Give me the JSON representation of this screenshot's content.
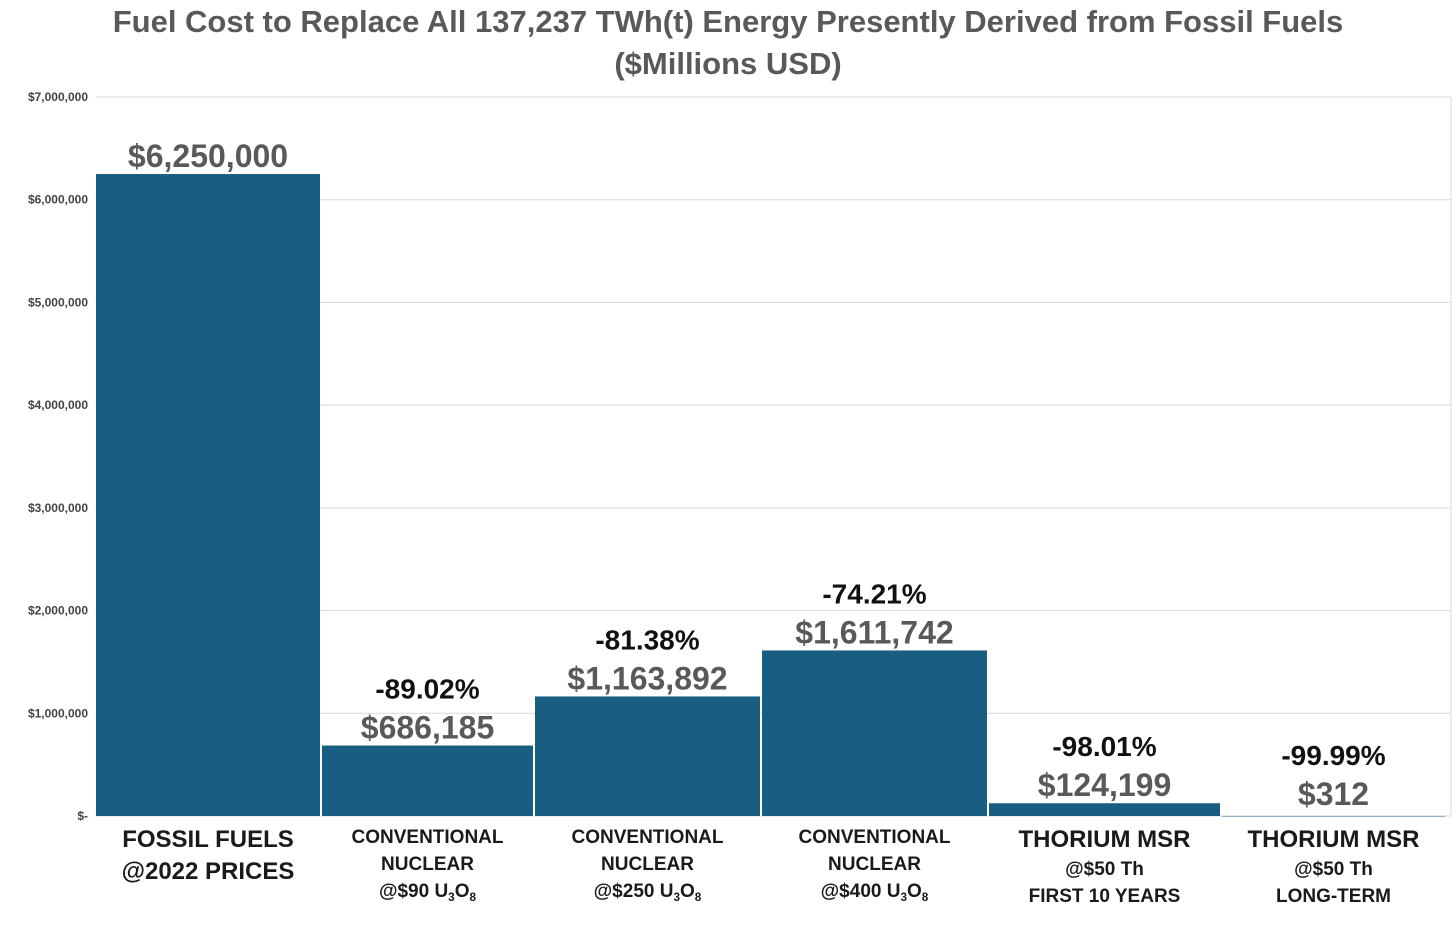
{
  "chart_data": {
    "type": "bar",
    "title": "Fuel Cost to Replace  All 137,237 TWh(t) Energy Presently Derived from Fossil Fuels",
    "subtitle": "($Millions USD)",
    "ylim": [
      0,
      7000000
    ],
    "y_ticks": [
      {
        "value": 0,
        "label": "$-"
      },
      {
        "value": 1000000,
        "label": "$1,000,000"
      },
      {
        "value": 2000000,
        "label": "$2,000,000"
      },
      {
        "value": 3000000,
        "label": "$3,000,000"
      },
      {
        "value": 4000000,
        "label": "$4,000,000"
      },
      {
        "value": 5000000,
        "label": "$5,000,000"
      },
      {
        "value": 6000000,
        "label": "$6,000,000"
      },
      {
        "value": 7000000,
        "label": "$7,000,000"
      }
    ],
    "grid": true,
    "bar_color": "#175e82",
    "categories": [
      {
        "lines": [
          "FOSSIL FUELS",
          "@2022 PRICES"
        ],
        "sub": ""
      },
      {
        "lines": [
          "CONVENTIONAL",
          "NUCLEAR",
          "@$90 U"
        ],
        "sub": [
          "3",
          "O",
          "8"
        ]
      },
      {
        "lines": [
          "CONVENTIONAL",
          "NUCLEAR",
          "@$250 U"
        ],
        "sub": [
          "3",
          "O",
          "8"
        ]
      },
      {
        "lines": [
          "CONVENTIONAL",
          "NUCLEAR",
          "@$400 U"
        ],
        "sub": [
          "3",
          "O",
          "8"
        ]
      },
      {
        "lines": [
          "THORIUM MSR",
          "@$50 Th",
          "FIRST 10 YEARS"
        ],
        "sub": ""
      },
      {
        "lines": [
          "THORIUM MSR",
          "@$50 Th",
          "LONG-TERM"
        ],
        "sub": ""
      }
    ],
    "values": [
      6250000,
      686185,
      1163892,
      1611742,
      124199,
      312
    ],
    "value_labels": [
      "$6,250,000",
      "$686,185",
      "$1,163,892",
      "$1,611,742",
      "$124,199",
      "$312"
    ],
    "change_labels": [
      "",
      "-89.02%",
      "-81.38%",
      "-74.21%",
      "-98.01%",
      "-99.99%"
    ]
  }
}
